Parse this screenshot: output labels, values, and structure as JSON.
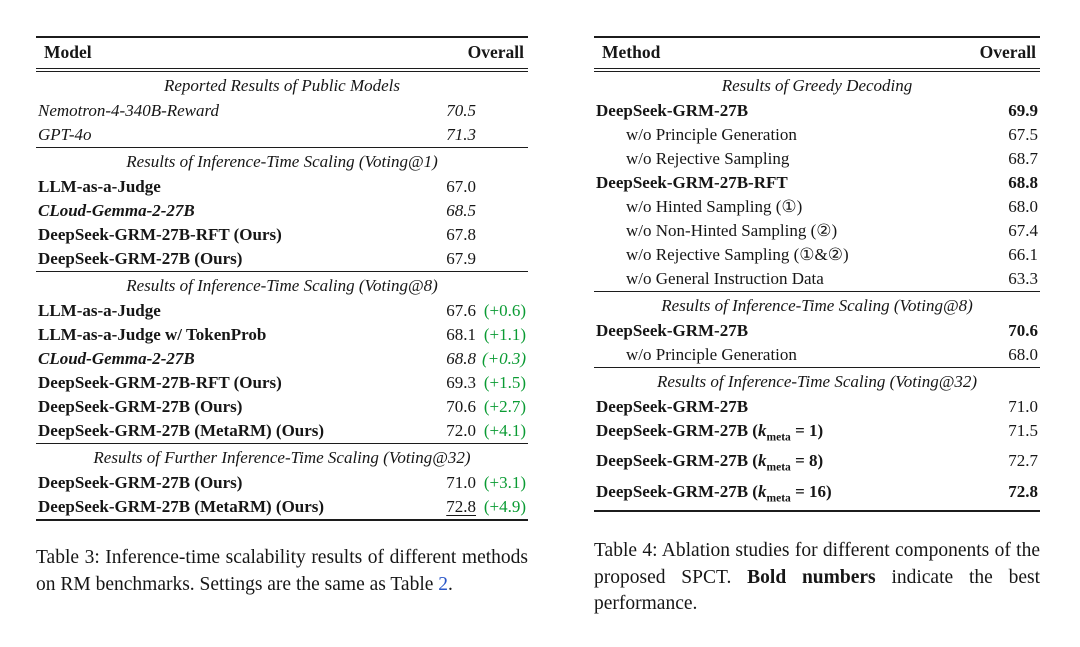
{
  "colors": {
    "text": "#161616",
    "rule": "#1c1c1c",
    "delta": "#0a9b33",
    "link": "#2a57c8",
    "background": "#ffffff"
  },
  "tables": [
    {
      "columns": [
        "Model",
        "Overall"
      ],
      "sections": [
        {
          "title": "Reported Results of Public Models",
          "rows": [
            {
              "label": "Nemotron-4-340B-Reward",
              "label_style": "italic",
              "value": "70.5",
              "value_style": "italic"
            },
            {
              "label": "GPT-4o",
              "label_style": "italic",
              "value": "71.3",
              "value_style": "italic"
            }
          ]
        },
        {
          "title": "Results of Inference-Time Scaling (Voting@1)",
          "rows": [
            {
              "label": "LLM-as-a-Judge",
              "label_style": "bold",
              "value": "67.0"
            },
            {
              "label": "CLoud-Gemma-2-27B",
              "label_style": "bolditalic",
              "value": "68.5",
              "value_style": "italic"
            },
            {
              "label": "DeepSeek-GRM-27B-RFT (Ours)",
              "label_style": "bold",
              "value": "67.8"
            },
            {
              "label": "DeepSeek-GRM-27B (Ours)",
              "label_style": "bold",
              "value": "67.9"
            }
          ]
        },
        {
          "title": "Results of Inference-Time Scaling (Voting@8)",
          "rows": [
            {
              "label": "LLM-as-a-Judge",
              "label_style": "bold",
              "value": "67.6",
              "delta": "(+0.6)"
            },
            {
              "label": "LLM-as-a-Judge w/ TokenProb",
              "label_style": "bold",
              "value": "68.1",
              "delta": "(+1.1)"
            },
            {
              "label": "CLoud-Gemma-2-27B",
              "label_style": "bolditalic",
              "value": "68.8",
              "value_style": "italic",
              "delta": "(+0.3)"
            },
            {
              "label": "DeepSeek-GRM-27B-RFT (Ours)",
              "label_style": "bold",
              "value": "69.3",
              "delta": "(+1.5)"
            },
            {
              "label": "DeepSeek-GRM-27B (Ours)",
              "label_style": "bold",
              "value": "70.6",
              "delta": "(+2.7)"
            },
            {
              "label": "DeepSeek-GRM-27B (MetaRM) (Ours)",
              "label_style": "bold",
              "value": "72.0",
              "delta": "(+4.1)"
            }
          ]
        },
        {
          "title": "Results of Further Inference-Time Scaling (Voting@32)",
          "rows": [
            {
              "label": "DeepSeek-GRM-27B (Ours)",
              "label_style": "bold",
              "value": "71.0",
              "delta": "(+3.1)"
            },
            {
              "label": "DeepSeek-GRM-27B (MetaRM) (Ours)",
              "label_style": "bold",
              "value": "72.8",
              "value_underline": true,
              "delta": "(+4.9)"
            }
          ]
        }
      ],
      "caption": [
        {
          "text": "Table 3: Inference-time scalability results of different methods on RM benchmarks. Settings are the same as Table "
        },
        {
          "text": "2",
          "style": "link"
        },
        {
          "text": "."
        }
      ]
    },
    {
      "columns": [
        "Method",
        "Overall"
      ],
      "sections": [
        {
          "title": "Results of Greedy Decoding",
          "rows": [
            {
              "label": "DeepSeek-GRM-27B",
              "label_style": "bold",
              "value": "69.9",
              "value_style": "bold"
            },
            {
              "label": "w/o Principle Generation",
              "indent": true,
              "value": "67.5"
            },
            {
              "label": "w/o Rejective Sampling",
              "indent": true,
              "value": "68.7"
            },
            {
              "label": "DeepSeek-GRM-27B-RFT",
              "label_style": "bold",
              "value": "68.8",
              "value_style": "bold"
            },
            {
              "label": "w/o Hinted Sampling (①)",
              "indent": true,
              "value": "68.0"
            },
            {
              "label": "w/o Non-Hinted Sampling (②)",
              "indent": true,
              "value": "67.4"
            },
            {
              "label": "w/o Rejective Sampling (①&②)",
              "indent": true,
              "value": "66.1"
            },
            {
              "label": "w/o General Instruction Data",
              "indent": true,
              "value": "63.3"
            }
          ]
        },
        {
          "title": "Results of Inference-Time Scaling (Voting@8)",
          "rows": [
            {
              "label": "DeepSeek-GRM-27B",
              "label_style": "bold",
              "value": "70.6",
              "value_style": "bold"
            },
            {
              "label": "w/o Principle Generation",
              "indent": true,
              "value": "68.0"
            }
          ]
        },
        {
          "title": "Results of Inference-Time Scaling (Voting@32)",
          "rows": [
            {
              "label": "DeepSeek-GRM-27B",
              "label_style": "bold",
              "value": "71.0"
            },
            {
              "label": "DeepSeek-GRM-27B (k_meta = 1)",
              "label_style": "bold",
              "value": "71.5"
            },
            {
              "label": "DeepSeek-GRM-27B (k_meta = 8)",
              "label_style": "bold",
              "value": "72.7"
            },
            {
              "label": "DeepSeek-GRM-27B (k_meta = 16)",
              "label_style": "bold",
              "value": "72.8",
              "value_style": "bold"
            }
          ]
        }
      ],
      "caption": [
        {
          "text": "Table 4: Ablation studies for different components of the proposed SPCT. "
        },
        {
          "text": "Bold numbers",
          "style": "bold"
        },
        {
          "text": " indicate the best performance."
        }
      ]
    }
  ]
}
